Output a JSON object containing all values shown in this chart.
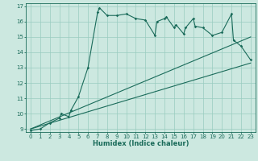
{
  "xlabel": "Humidex (Indice chaleur)",
  "background_color": "#cce8e0",
  "grid_color": "#99ccc0",
  "line_color": "#1a6b5a",
  "xlim": [
    -0.5,
    23.5
  ],
  "ylim": [
    8.8,
    17.2
  ],
  "yticks": [
    9,
    10,
    11,
    12,
    13,
    14,
    15,
    16,
    17
  ],
  "xticks": [
    0,
    1,
    2,
    3,
    4,
    5,
    6,
    7,
    8,
    9,
    10,
    11,
    12,
    13,
    14,
    15,
    16,
    17,
    18,
    19,
    20,
    21,
    22,
    23
  ],
  "series1_x": [
    0,
    1,
    2,
    3,
    3.2,
    4,
    4.2,
    5,
    6,
    7,
    7.2,
    8,
    9,
    10,
    11,
    12,
    13,
    13.2,
    14,
    14.2,
    15,
    15.2,
    16,
    16.2,
    17,
    17.2,
    18,
    19,
    20,
    21,
    21.2,
    22,
    23
  ],
  "series1_y": [
    8.9,
    9.0,
    9.4,
    9.7,
    10.0,
    9.8,
    10.2,
    11.1,
    13.0,
    16.6,
    16.9,
    16.4,
    16.4,
    16.5,
    16.2,
    16.1,
    15.1,
    16.0,
    16.2,
    16.3,
    15.6,
    15.8,
    15.2,
    15.6,
    16.2,
    15.7,
    15.6,
    15.1,
    15.3,
    16.5,
    14.8,
    14.4,
    13.5
  ],
  "series2_x": [
    0,
    23
  ],
  "series2_y": [
    9.0,
    13.3
  ],
  "series3_x": [
    0,
    23
  ],
  "series3_y": [
    9.0,
    15.0
  ],
  "marker": "D",
  "marker_size": 1.8,
  "linewidth": 0.8,
  "tick_fontsize": 5.0,
  "xlabel_fontsize": 6.0
}
